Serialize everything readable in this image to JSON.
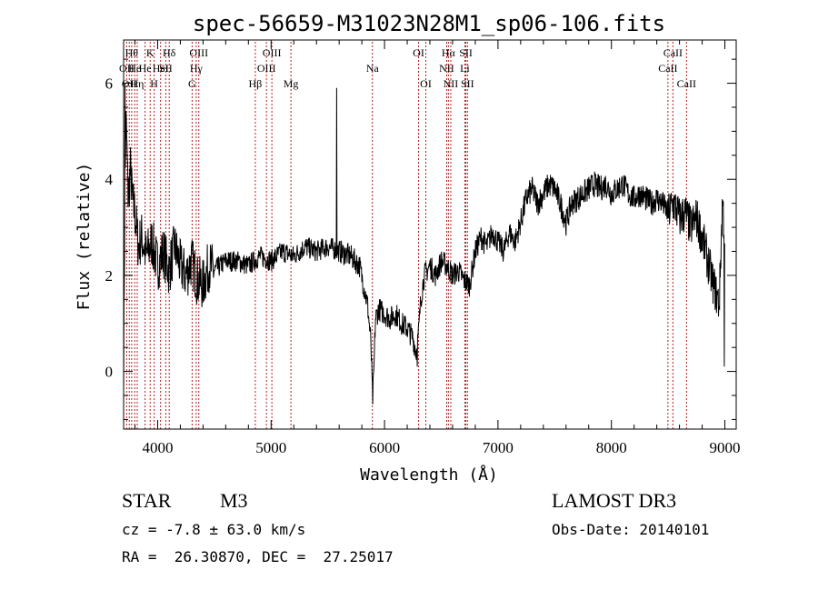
{
  "chart_data": {
    "type": "line",
    "title": "spec-56659-M31023N28M1_sp06-106.fits",
    "xlabel": "Wavelength (Å)",
    "ylabel": "Flux (relative)",
    "xlim": [
      3700,
      9100
    ],
    "ylim": [
      -1.2,
      6.9
    ],
    "xticks": [
      4000,
      5000,
      6000,
      7000,
      8000,
      9000
    ],
    "yticks": [
      0,
      2,
      4,
      6
    ],
    "grid": false,
    "line_color": "#000000",
    "marker_color": "#b22222",
    "spectrum_anchors": [
      [
        3700,
        0.0
      ],
      [
        3710,
        3.2
      ],
      [
        3720,
        5.2
      ],
      [
        3730,
        4.6
      ],
      [
        3740,
        3.6
      ],
      [
        3760,
        4.2
      ],
      [
        3780,
        3.5
      ],
      [
        3800,
        3.3
      ],
      [
        3830,
        2.6
      ],
      [
        3860,
        2.8
      ],
      [
        3900,
        2.4
      ],
      [
        3950,
        2.7
      ],
      [
        4000,
        2.2
      ],
      [
        4050,
        2.5
      ],
      [
        4100,
        2.1
      ],
      [
        4150,
        2.6
      ],
      [
        4200,
        2.2
      ],
      [
        4250,
        2.0
      ],
      [
        4300,
        2.3
      ],
      [
        4350,
        1.9
      ],
      [
        4400,
        1.8
      ],
      [
        4450,
        2.2
      ],
      [
        4500,
        2.1
      ],
      [
        4600,
        2.3
      ],
      [
        4700,
        2.3
      ],
      [
        4800,
        2.2
      ],
      [
        4900,
        2.4
      ],
      [
        5000,
        2.3
      ],
      [
        5100,
        2.5
      ],
      [
        5200,
        2.4
      ],
      [
        5300,
        2.6
      ],
      [
        5400,
        2.5
      ],
      [
        5500,
        2.6
      ],
      [
        5600,
        2.5
      ],
      [
        5700,
        2.4
      ],
      [
        5780,
        2.2
      ],
      [
        5850,
        1.4
      ],
      [
        5880,
        0.6
      ],
      [
        5895,
        -0.6
      ],
      [
        5905,
        -0.1
      ],
      [
        5920,
        1.1
      ],
      [
        5950,
        1.3
      ],
      [
        6000,
        1.2
      ],
      [
        6050,
        1.1
      ],
      [
        6100,
        1.2
      ],
      [
        6150,
        1.0
      ],
      [
        6200,
        0.9
      ],
      [
        6250,
        0.7
      ],
      [
        6280,
        0.4
      ],
      [
        6300,
        0.8
      ],
      [
        6320,
        1.5
      ],
      [
        6350,
        2.0
      ],
      [
        6400,
        2.2
      ],
      [
        6450,
        2.0
      ],
      [
        6500,
        2.3
      ],
      [
        6550,
        2.2
      ],
      [
        6600,
        2.0
      ],
      [
        6650,
        2.1
      ],
      [
        6700,
        1.9
      ],
      [
        6750,
        1.8
      ],
      [
        6800,
        2.5
      ],
      [
        6850,
        2.8
      ],
      [
        6900,
        2.6
      ],
      [
        6950,
        2.9
      ],
      [
        7000,
        2.7
      ],
      [
        7050,
        2.5
      ],
      [
        7100,
        2.9
      ],
      [
        7150,
        2.7
      ],
      [
        7200,
        3.1
      ],
      [
        7250,
        3.6
      ],
      [
        7300,
        3.8
      ],
      [
        7350,
        3.5
      ],
      [
        7400,
        3.7
      ],
      [
        7450,
        3.9
      ],
      [
        7500,
        3.8
      ],
      [
        7550,
        3.5
      ],
      [
        7600,
        3.1
      ],
      [
        7650,
        3.5
      ],
      [
        7700,
        3.6
      ],
      [
        7750,
        3.7
      ],
      [
        7800,
        3.8
      ],
      [
        7850,
        3.9
      ],
      [
        7900,
        3.8
      ],
      [
        7950,
        3.9
      ],
      [
        8000,
        3.7
      ],
      [
        8050,
        3.8
      ],
      [
        8100,
        3.9
      ],
      [
        8150,
        3.7
      ],
      [
        8200,
        3.6
      ],
      [
        8250,
        3.7
      ],
      [
        8300,
        3.6
      ],
      [
        8350,
        3.5
      ],
      [
        8400,
        3.6
      ],
      [
        8450,
        3.5
      ],
      [
        8500,
        3.3
      ],
      [
        8550,
        3.5
      ],
      [
        8600,
        3.2
      ],
      [
        8650,
        3.3
      ],
      [
        8700,
        3.0
      ],
      [
        8750,
        3.2
      ],
      [
        8800,
        2.8
      ],
      [
        8850,
        2.3
      ],
      [
        8900,
        1.8
      ],
      [
        8950,
        1.4
      ],
      [
        8980,
        3.6
      ],
      [
        9000,
        2.6
      ]
    ],
    "spikes": [
      [
        5577,
        5.9
      ],
      [
        8995,
        0.1
      ],
      [
        3712,
        6.0
      ],
      [
        6288,
        0.1
      ]
    ],
    "line_markers": [
      {
        "wavelength": 3727,
        "label": "OII",
        "row": 1
      },
      {
        "wavelength": 3750,
        "label": "OII",
        "row": 2
      },
      {
        "wavelength": 3771,
        "label": "Hθ",
        "row": 0
      },
      {
        "wavelength": 3798,
        "label": "He",
        "row": 1
      },
      {
        "wavelength": 3820,
        "label": "Hη",
        "row": 2
      },
      {
        "wavelength": 3889,
        "label": "He",
        "row": 1
      },
      {
        "wavelength": 3934,
        "label": "K",
        "row": 0
      },
      {
        "wavelength": 3969,
        "label": "H",
        "row": 2
      },
      {
        "wavelength": 4026,
        "label": "HeI",
        "row": 1
      },
      {
        "wavelength": 4072,
        "label": "SII",
        "row": 1
      },
      {
        "wavelength": 4102,
        "label": "Hδ",
        "row": 0
      },
      {
        "wavelength": 4304,
        "label": "G",
        "row": 2
      },
      {
        "wavelength": 4340,
        "label": "Hγ",
        "row": 1
      },
      {
        "wavelength": 4363,
        "label": "OIII",
        "row": 0
      },
      {
        "wavelength": 4861,
        "label": "Hβ",
        "row": 2
      },
      {
        "wavelength": 4959,
        "label": "OIII",
        "row": 1
      },
      {
        "wavelength": 5007,
        "label": "OIII",
        "row": 0
      },
      {
        "wavelength": 5175,
        "label": "Mg",
        "row": 2
      },
      {
        "wavelength": 5893,
        "label": "Na",
        "row": 1
      },
      {
        "wavelength": 6300,
        "label": "OI",
        "row": 0
      },
      {
        "wavelength": 6364,
        "label": "OI",
        "row": 2
      },
      {
        "wavelength": 6548,
        "label": "NII",
        "row": 1
      },
      {
        "wavelength": 6563,
        "label": "Hα",
        "row": 0
      },
      {
        "wavelength": 6584,
        "label": "NII",
        "row": 2
      },
      {
        "wavelength": 6708,
        "label": "Li",
        "row": 1
      },
      {
        "wavelength": 6717,
        "label": "SII",
        "row": 0
      },
      {
        "wavelength": 6731,
        "label": "SII",
        "row": 2
      },
      {
        "wavelength": 8498,
        "label": "CaII",
        "row": 1
      },
      {
        "wavelength": 8542,
        "label": "CaII",
        "row": 0
      },
      {
        "wavelength": 8662,
        "label": "CaII",
        "row": 2
      }
    ]
  },
  "info": {
    "object_class": "STAR",
    "subclass": "M3",
    "survey": "LAMOST DR3",
    "redshift": "cz = -7.8 ± 63.0 km/s",
    "obs_date": "Obs-Date: 20140101",
    "coords": "RA =  26.30870, DEC =  27.25017"
  }
}
